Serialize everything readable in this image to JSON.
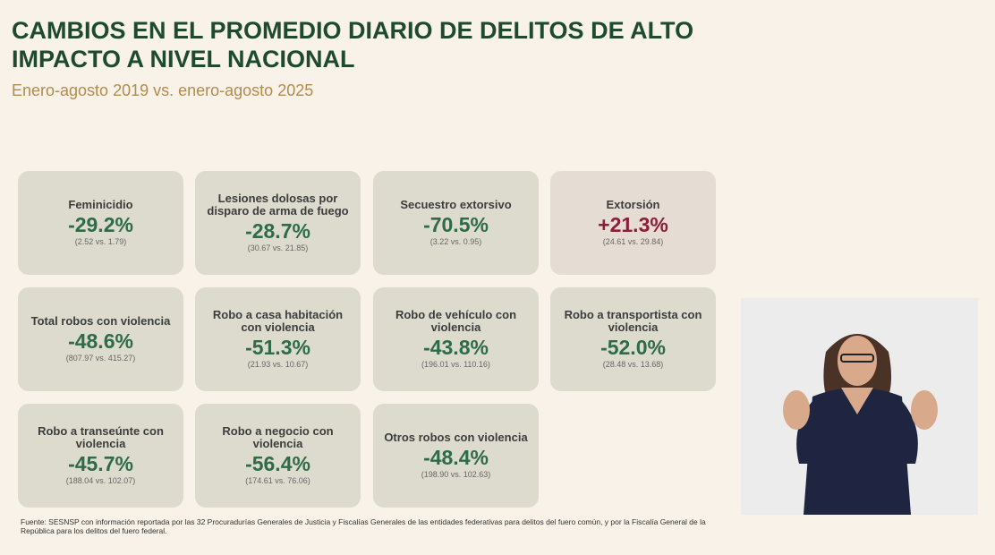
{
  "title": "CAMBIOS EN EL PROMEDIO DIARIO DE DELITOS DE ALTO IMPACTO A NIVEL NACIONAL",
  "subtitle": "Enero-agosto 2019 vs. enero-agosto 2025",
  "colors": {
    "decrease": "#2e6b47",
    "increase": "#8c1d3b",
    "title": "#1e4a2e"
  },
  "cards": [
    {
      "label": "Feminicidio",
      "change": "-29.2%",
      "compare": "(2.52 vs. 1.79)"
    },
    {
      "label": "Lesiones dolosas por disparo de arma de fuego",
      "change": "-28.7%",
      "compare": "(30.67 vs. 21.85)"
    },
    {
      "label": "Secuestro extorsivo",
      "change": "-70.5%",
      "compare": "(3.22 vs. 0.95)"
    },
    {
      "label": "Extorsión",
      "change": "+21.3%",
      "compare": "(24.61 vs. 29.84)"
    },
    {
      "label": "Total robos con violencia",
      "change": "-48.6%",
      "compare": "(807.97 vs. 415.27)"
    },
    {
      "label": "Robo a casa habitación con violencia",
      "change": "-51.3%",
      "compare": "(21.93 vs. 10.67)"
    },
    {
      "label": "Robo de vehículo con violencia",
      "change": "-43.8%",
      "compare": "(196.01 vs. 110.16)"
    },
    {
      "label": "Robo a transportista con violencia",
      "change": "-52.0%",
      "compare": "(28.48 vs. 13.68)"
    },
    {
      "label": "Robo a transeúnte con violencia",
      "change": "-45.7%",
      "compare": "(188.04 vs. 102.07)"
    },
    {
      "label": "Robo a negocio con violencia",
      "change": "-56.4%",
      "compare": "(174.61 vs. 76.06)"
    },
    {
      "label": "Otros robos con violencia",
      "change": "-48.4%",
      "compare": "(198.90 vs. 102.63)"
    }
  ],
  "footnote": "Fuente: SESNSP con información reportada por las 32 Procuradurías Generales de Justicia y Fiscalías Generales de las entidades federativas para delitos del fuero común, y por la Fiscalía General de la República para los delitos del fuero federal."
}
